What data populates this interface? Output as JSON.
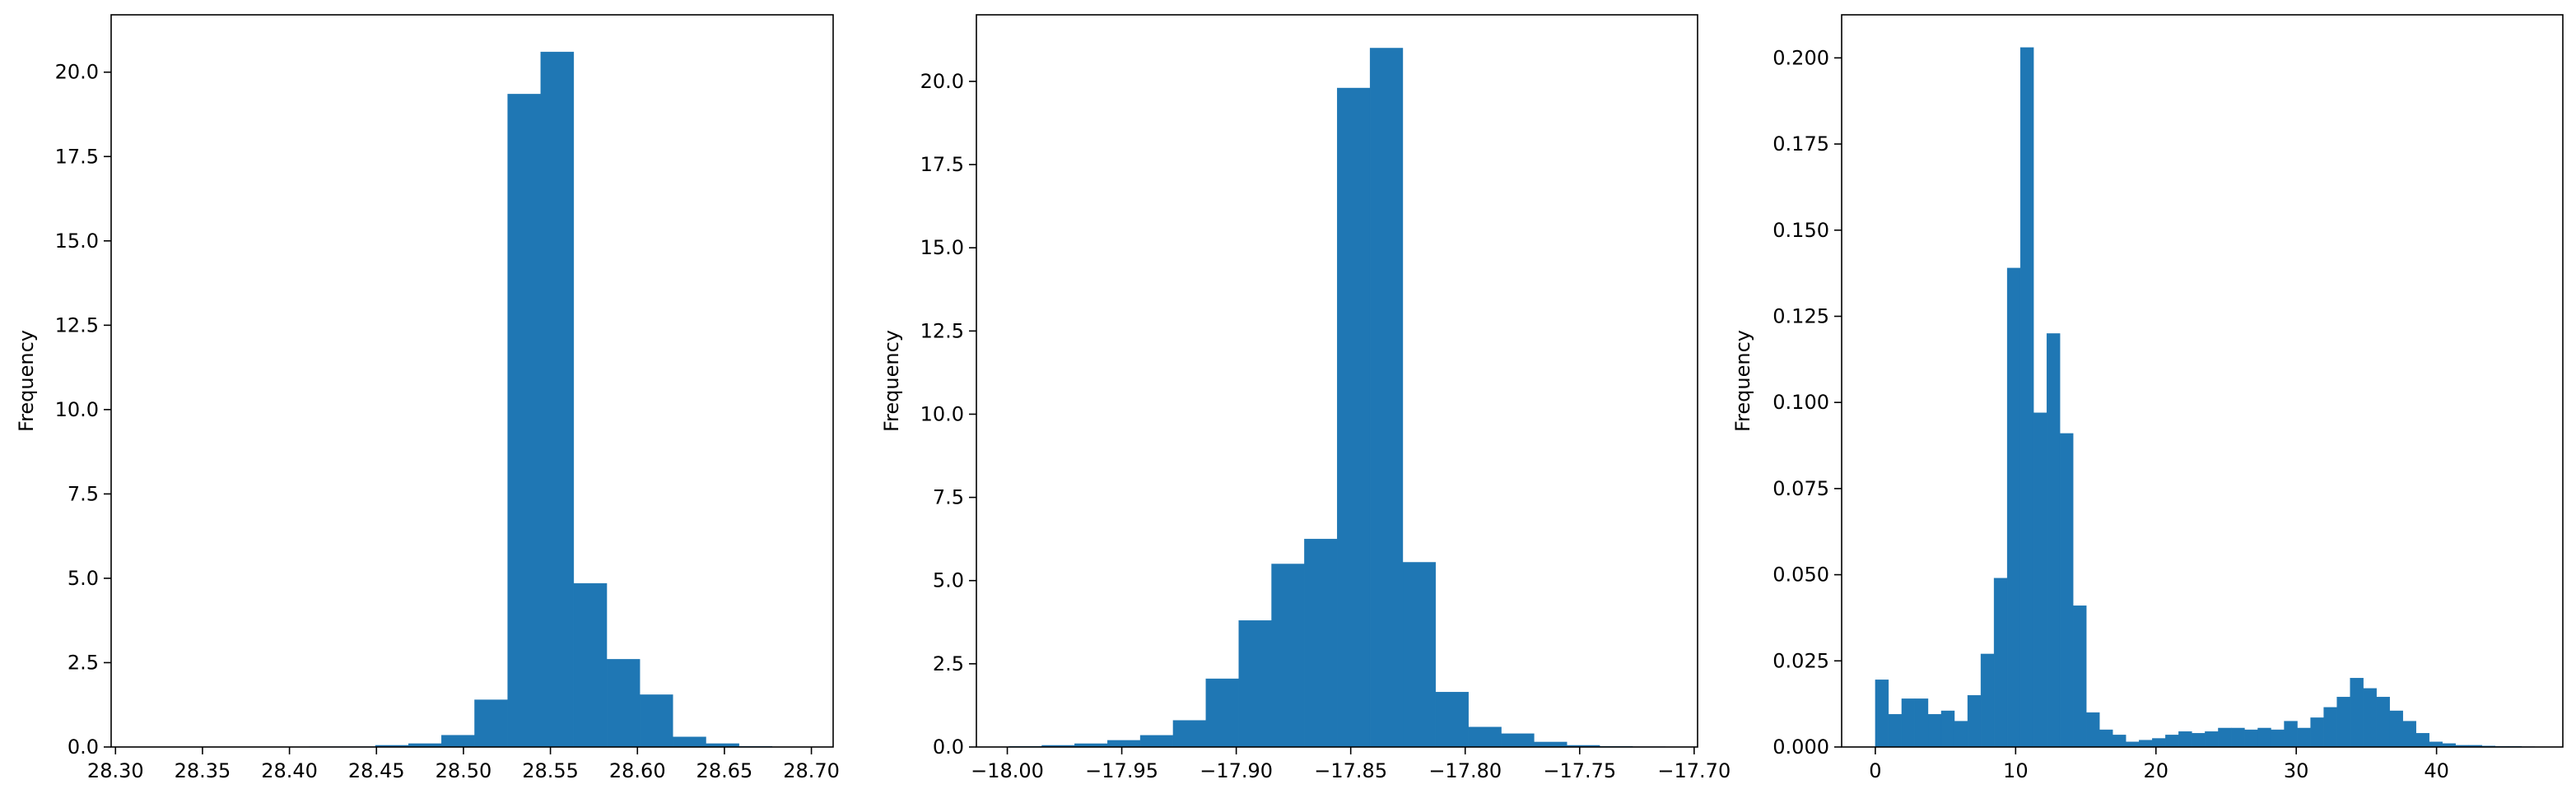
{
  "chart_data": [
    {
      "type": "bar",
      "histogram": true,
      "ylabel": "Frequency",
      "xlim": [
        28.2975,
        28.7125
      ],
      "ylim": [
        0,
        21.7
      ],
      "xticks": [
        28.3,
        28.35,
        28.4,
        28.45,
        28.5,
        28.55,
        28.6,
        28.65,
        28.7
      ],
      "xtick_labels": [
        "28.30",
        "28.35",
        "28.40",
        "28.45",
        "28.50",
        "28.55",
        "28.60",
        "28.65",
        "28.70"
      ],
      "yticks": [
        0,
        2.5,
        5,
        7.5,
        10,
        12.5,
        15,
        17.5,
        20
      ],
      "ytick_labels": [
        "0.0",
        "2.5",
        "5.0",
        "7.5",
        "10.0",
        "12.5",
        "15.0",
        "17.5",
        "20.0"
      ],
      "bin_edges": [
        28.3164,
        28.3354,
        28.3544,
        28.3734,
        28.3924,
        28.4114,
        28.4304,
        28.4494,
        28.4684,
        28.4874,
        28.5064,
        28.5254,
        28.5444,
        28.5634,
        28.5824,
        28.6014,
        28.6204,
        28.6394,
        28.6584,
        28.6774,
        28.6964
      ],
      "values": [
        0.005,
        0.005,
        0.005,
        0.005,
        0.005,
        0.01,
        0.01,
        0.05,
        0.1,
        0.35,
        1.4,
        19.35,
        20.6,
        4.85,
        2.6,
        1.55,
        0.3,
        0.1,
        0.02,
        0.005
      ],
      "color": "#1f77b4",
      "grid": false
    },
    {
      "type": "bar",
      "histogram": true,
      "ylabel": "Frequency",
      "xlim": [
        -18.0135,
        -17.6985
      ],
      "ylim": [
        0,
        22.0
      ],
      "xticks": [
        -18.0,
        -17.95,
        -17.9,
        -17.85,
        -17.8,
        -17.75,
        -17.7
      ],
      "xtick_labels": [
        "−18.00",
        "−17.95",
        "−17.90",
        "−17.85",
        "−17.80",
        "−17.75",
        "−17.70"
      ],
      "yticks": [
        0,
        2.5,
        5,
        7.5,
        10,
        12.5,
        15,
        17.5,
        20
      ],
      "ytick_labels": [
        "0.0",
        "2.5",
        "5.0",
        "7.5",
        "10.0",
        "12.5",
        "15.0",
        "17.5",
        "20.0"
      ],
      "bin_edges": [
        -17.99926,
        -17.98492,
        -17.97059,
        -17.95625,
        -17.94192,
        -17.92758,
        -17.91325,
        -17.89891,
        -17.88458,
        -17.87024,
        -17.85591,
        -17.84157,
        -17.82724,
        -17.8129,
        -17.79857,
        -17.78423,
        -17.7699,
        -17.75556,
        -17.74123,
        -17.72689,
        -17.71256
      ],
      "values": [
        0.02,
        0.05,
        0.1,
        0.2,
        0.35,
        0.8,
        2.05,
        3.8,
        5.5,
        6.25,
        19.8,
        21.0,
        5.55,
        1.65,
        0.6,
        0.4,
        0.15,
        0.05,
        0.02,
        0.01
      ],
      "color": "#1f77b4",
      "grid": false
    },
    {
      "type": "bar",
      "histogram": true,
      "ylabel": "Frequency",
      "xlim": [
        -2.4,
        49.0
      ],
      "ylim": [
        0,
        0.2125
      ],
      "xticks": [
        0,
        10,
        20,
        30,
        40
      ],
      "xtick_labels": [
        "0",
        "10",
        "20",
        "30",
        "40"
      ],
      "yticks": [
        0,
        0.025,
        0.05,
        0.075,
        0.1,
        0.125,
        0.15,
        0.175,
        0.2
      ],
      "ytick_labels": [
        "0.000",
        "0.025",
        "0.050",
        "0.075",
        "0.100",
        "0.125",
        "0.150",
        "0.175",
        "0.200"
      ],
      "bin_start": 0,
      "bin_width": 0.94,
      "values": [
        0.0195,
        0.0095,
        0.014,
        0.014,
        0.0095,
        0.0105,
        0.0075,
        0.015,
        0.027,
        0.049,
        0.139,
        0.203,
        0.097,
        0.12,
        0.091,
        0.041,
        0.01,
        0.005,
        0.0035,
        0.0015,
        0.002,
        0.0025,
        0.0035,
        0.0045,
        0.004,
        0.0045,
        0.0055,
        0.0055,
        0.005,
        0.0055,
        0.005,
        0.0075,
        0.0055,
        0.0085,
        0.0115,
        0.0145,
        0.02,
        0.017,
        0.0145,
        0.0105,
        0.0075,
        0.004,
        0.0015,
        0.001,
        0.0005,
        0.0005,
        0.0003,
        0.0002,
        0.0002,
        0.0001
      ],
      "color": "#1f77b4",
      "grid": false
    }
  ]
}
